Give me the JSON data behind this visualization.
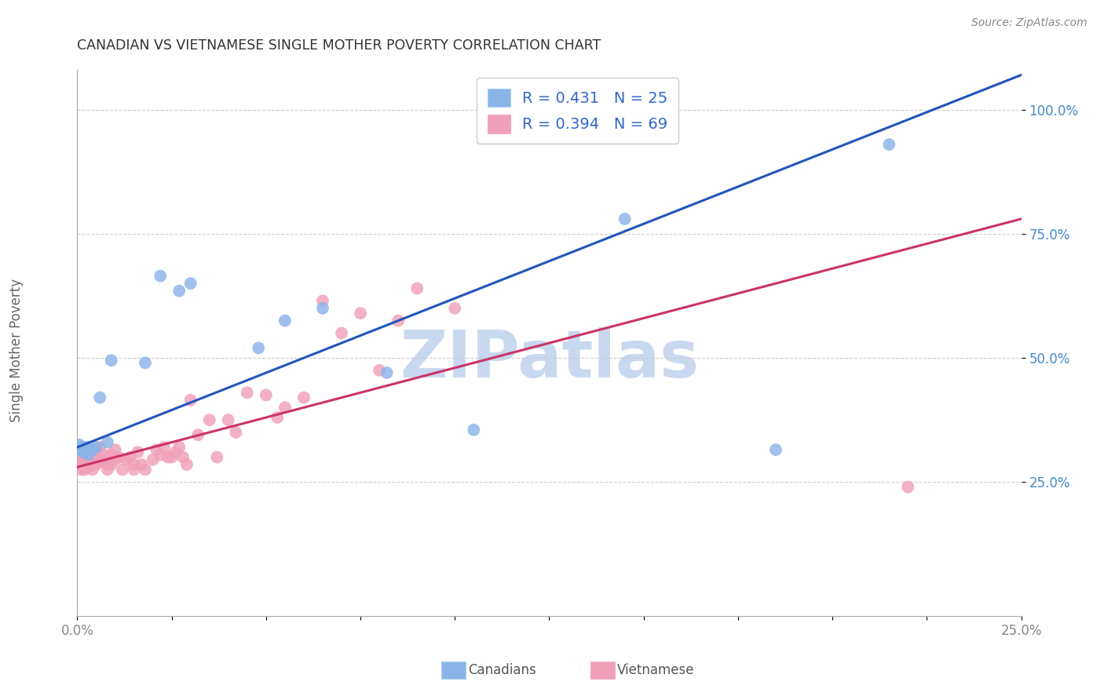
{
  "title": "CANADIAN VS VIETNAMESE SINGLE MOTHER POVERTY CORRELATION CHART",
  "source": "Source: ZipAtlas.com",
  "ylabel": "Single Mother Poverty",
  "xlim": [
    0.0,
    0.25
  ],
  "ylim": [
    -0.02,
    1.08
  ],
  "blue_scatter": "#8ab4e8",
  "pink_scatter": "#f0a0b8",
  "blue_line": "#2255bb",
  "pink_line": "#cc3366",
  "blue_text": "#3366cc",
  "title_color": "#333333",
  "source_color": "#888888",
  "watermark_color": "#c8d8ef",
  "grid_color": "#cccccc",
  "tick_color_right": "#4488cc",
  "tick_color_bottom": "#888888",
  "canadian_x": [
    0.0005,
    0.001,
    0.001,
    0.0015,
    0.002,
    0.002,
    0.003,
    0.003,
    0.004,
    0.005,
    0.006,
    0.008,
    0.009,
    0.018,
    0.022,
    0.027,
    0.03,
    0.048,
    0.055,
    0.065,
    0.082,
    0.105,
    0.145,
    0.185,
    0.215
  ],
  "canadian_y": [
    0.325,
    0.315,
    0.32,
    0.31,
    0.32,
    0.315,
    0.305,
    0.32,
    0.315,
    0.32,
    0.42,
    0.33,
    0.495,
    0.49,
    0.665,
    0.635,
    0.65,
    0.52,
    0.575,
    0.6,
    0.47,
    0.355,
    0.78,
    0.315,
    0.93
  ],
  "vietnamese_x": [
    0.0003,
    0.0005,
    0.001,
    0.001,
    0.001,
    0.001,
    0.001,
    0.0015,
    0.002,
    0.002,
    0.002,
    0.0025,
    0.003,
    0.003,
    0.003,
    0.003,
    0.004,
    0.004,
    0.005,
    0.005,
    0.005,
    0.006,
    0.006,
    0.007,
    0.007,
    0.008,
    0.008,
    0.009,
    0.009,
    0.01,
    0.01,
    0.011,
    0.012,
    0.013,
    0.014,
    0.015,
    0.015,
    0.016,
    0.017,
    0.018,
    0.02,
    0.021,
    0.022,
    0.023,
    0.024,
    0.025,
    0.026,
    0.027,
    0.028,
    0.029,
    0.03,
    0.032,
    0.035,
    0.037,
    0.04,
    0.042,
    0.045,
    0.05,
    0.053,
    0.055,
    0.06,
    0.065,
    0.07,
    0.075,
    0.08,
    0.085,
    0.09,
    0.1,
    0.22
  ],
  "vietnamese_y": [
    0.29,
    0.285,
    0.295,
    0.29,
    0.285,
    0.275,
    0.28,
    0.3,
    0.295,
    0.285,
    0.275,
    0.29,
    0.31,
    0.295,
    0.285,
    0.28,
    0.3,
    0.275,
    0.315,
    0.295,
    0.285,
    0.32,
    0.29,
    0.305,
    0.295,
    0.285,
    0.275,
    0.305,
    0.285,
    0.315,
    0.295,
    0.3,
    0.275,
    0.295,
    0.3,
    0.285,
    0.275,
    0.31,
    0.285,
    0.275,
    0.295,
    0.315,
    0.305,
    0.32,
    0.3,
    0.3,
    0.31,
    0.32,
    0.3,
    0.285,
    0.415,
    0.345,
    0.375,
    0.3,
    0.375,
    0.35,
    0.43,
    0.425,
    0.38,
    0.4,
    0.42,
    0.615,
    0.55,
    0.59,
    0.475,
    0.575,
    0.64,
    0.6,
    0.24
  ],
  "blue_line_intercept": 0.32,
  "blue_line_slope": 3.0,
  "pink_line_intercept": 0.28,
  "pink_line_slope": 2.0
}
